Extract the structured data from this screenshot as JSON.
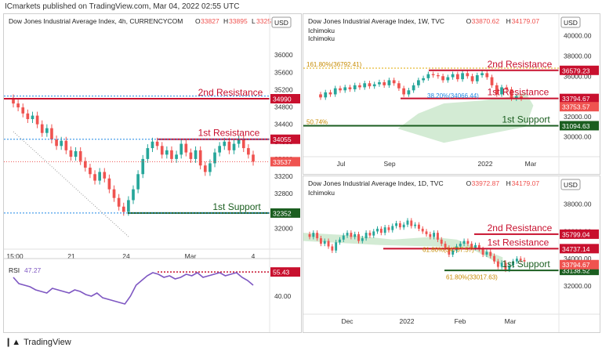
{
  "header": {
    "credit": "ICmarkets published on TradingView.com, Mar 04, 2022 02:55 UTC"
  },
  "footer": {
    "brand": "TradingView"
  },
  "colors": {
    "up": "#26a69a",
    "down": "#ef5350",
    "resistance": "#c8102e",
    "support": "#1b5e20",
    "ichimoku_cloud": "#c8e6c9",
    "rsi": "#7e57c2"
  },
  "chart_data": [
    {
      "type": "candlestick",
      "title": "Dow Jones Industrial Average Index, 4h, CURRENCYCOM",
      "ohlc_readout": {
        "o": "33827",
        "h": "33895",
        "l": "33257..."
      },
      "currency": "USD",
      "y_ticks": [
        "36000",
        "35600",
        "35200",
        "34800",
        "34400",
        "34000",
        "33600",
        "33200",
        "32800",
        "32400",
        "32000"
      ],
      "ylim": [
        31700,
        36400
      ],
      "x_ticks": [
        "15:00",
        "21",
        "24",
        "Mar",
        "4"
      ],
      "levels": [
        {
          "name": "2nd Resistance",
          "value": 34990,
          "label": "34990",
          "kind": "resistance"
        },
        {
          "name": "1st Resistance",
          "value": 34055,
          "label": "34055",
          "kind": "resistance"
        },
        {
          "name": "1st Support",
          "value": 32352,
          "label": "32352",
          "kind": "support"
        }
      ],
      "last_price_label": "33537",
      "closes": [
        34880,
        34790,
        34650,
        34520,
        34600,
        34400,
        34200,
        34310,
        34050,
        33900,
        34020,
        33800,
        33650,
        33780,
        33550,
        33400,
        33250,
        33100,
        33300,
        33150,
        32900,
        32700,
        32500,
        32380,
        32650,
        32900,
        33250,
        33600,
        33850,
        34000,
        33900,
        33700,
        33800,
        33600,
        33700,
        33950,
        33750,
        33600,
        33800,
        33450,
        33300,
        33500,
        33750,
        33900,
        34000,
        33800,
        33950,
        34050,
        33850,
        33700,
        33537
      ],
      "rsi": {
        "label": "RSI",
        "value": "47.27",
        "level": "55.43",
        "y_tick": "40.00",
        "values": [
          52,
          48,
          47,
          46,
          44,
          43,
          42,
          45,
          44,
          43,
          42,
          44,
          43,
          41,
          40,
          42,
          39,
          38,
          37,
          36,
          35,
          40,
          47,
          50,
          53,
          55,
          54,
          52,
          53,
          51,
          52,
          54,
          53,
          55,
          52,
          53,
          54,
          55,
          53,
          54,
          55,
          52,
          50,
          47
        ]
      }
    },
    {
      "type": "candlestick",
      "title": "Dow Jones Industrial Average Index, 1W, TVC",
      "ohlc_readout": {
        "o": "33870.62",
        "h": "34179.07",
        "l": "..."
      },
      "indicators": [
        "Ichimoku",
        "Ichimoku"
      ],
      "currency": "USD",
      "y_ticks": [
        "40000.00",
        "38000.00",
        "36000.00",
        "34000.00",
        "32000.00",
        "30000.00"
      ],
      "ylim": [
        28800,
        40600
      ],
      "x_ticks": [
        "Jul",
        "Sep",
        "2022",
        "Mar"
      ],
      "fib_labels": [
        "161.80%(36792.41)",
        "38.20%(34066.44)",
        "50.74%"
      ],
      "levels": [
        {
          "name": "2nd Resistance",
          "value": 36579.23,
          "label": "36579.23",
          "kind": "resistance"
        },
        {
          "name": "1st Resistance",
          "value": 33794.67,
          "label": "33794.67",
          "kind": "resistance"
        },
        {
          "name": "1st Support",
          "value": 31094.63,
          "label": "31094.63",
          "kind": "support"
        }
      ],
      "extra_label": "33753.57",
      "closes": [
        33900,
        34400,
        34200,
        34800,
        34600,
        34900,
        34700,
        35100,
        34900,
        35300,
        35000,
        35200,
        35400,
        35100,
        35600,
        35300,
        34800,
        34200,
        34600,
        35100,
        35600,
        35800,
        36200,
        36100,
        36000,
        35600,
        35900,
        36200,
        35700,
        36300,
        36000,
        35500,
        36100,
        36300,
        35900,
        35100,
        34200,
        34900,
        34700,
        33800,
        34000,
        33800
      ]
    },
    {
      "type": "candlestick",
      "title": "Dow Jones Industrial Average Index, 1D, TVC",
      "ohlc_readout": {
        "o": "33972.87",
        "h": "34179.07",
        "l": "..."
      },
      "indicators": [
        "Ichimoku"
      ],
      "currency": "USD",
      "y_ticks": [
        "38000.00",
        "36000.00",
        "34000.00",
        "32000.00"
      ],
      "ylim": [
        30500,
        38900
      ],
      "x_ticks": [
        "Dec",
        "2022",
        "Feb",
        "Mar"
      ],
      "fib_labels": [
        "61.80%(34737.57)",
        "61.80%(33017.63)"
      ],
      "levels": [
        {
          "name": "2nd Resistance",
          "value": 35799.04,
          "label": "35799.04",
          "kind": "resistance"
        },
        {
          "name": "1st Resistance",
          "value": 34737.14,
          "label": "34737.14",
          "kind": "resistance"
        },
        {
          "name": "1st Support",
          "value": 33138.52,
          "label": "33138.52",
          "kind": "support"
        }
      ],
      "extra_label": "33794.67",
      "closes": [
        35600,
        35900,
        35500,
        35100,
        35300,
        34900,
        34600,
        35200,
        35400,
        35700,
        35900,
        35600,
        35800,
        35300,
        35500,
        35900,
        35700,
        36000,
        36200,
        35900,
        36300,
        36100,
        36400,
        36600,
        36300,
        36500,
        36800,
        36400,
        36500,
        36200,
        36000,
        35800,
        35600,
        35900,
        35400,
        35100,
        34800,
        34300,
        34600,
        34900,
        35100,
        35300,
        35100,
        34800,
        35000,
        34700,
        34300,
        34500,
        34200,
        33800,
        33400,
        33700,
        33200,
        33500,
        33800,
        34000,
        33900,
        33800
      ]
    }
  ]
}
